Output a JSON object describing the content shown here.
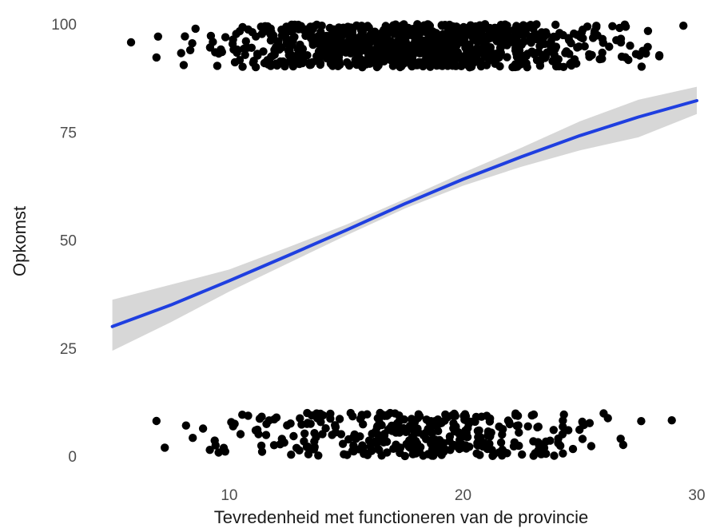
{
  "chart_data": {
    "type": "scatter",
    "title": "",
    "xlabel": "Tevredenheid met functioneren van de provincie",
    "ylabel": "Opkomst",
    "xlim": [
      4.5,
      30
    ],
    "ylim": [
      -3.5,
      103
    ],
    "x_ticks": [
      10,
      20,
      30
    ],
    "y_ticks": [
      0,
      25,
      50,
      75,
      100
    ],
    "grid": false,
    "legend": "none",
    "point_color": "#000000",
    "line_color": "#1f3fe0",
    "band_color": "#d3d3d3",
    "jitter": {
      "y_value_high": 100,
      "y_value_low": 0,
      "y_spread": 10,
      "point_count_high": 900,
      "point_count_low": 360
    },
    "fit_curve": {
      "method": "logistic",
      "x": [
        5,
        7.5,
        10,
        12.5,
        15,
        17.5,
        20,
        22.5,
        25,
        27.5,
        30
      ],
      "y": [
        30,
        35,
        40.6,
        46.4,
        52.3,
        58.4,
        64.1,
        69.3,
        74.2,
        78.5,
        82.3
      ],
      "ci_lower": [
        24.4,
        31,
        38.1,
        44.6,
        51.1,
        57.3,
        62.6,
        67,
        70.8,
        73.8,
        79.2
      ],
      "ci_upper": [
        36.2,
        39.7,
        43.2,
        48.3,
        53.6,
        59.5,
        65.6,
        71.4,
        77.5,
        82.5,
        85.5
      ]
    }
  }
}
